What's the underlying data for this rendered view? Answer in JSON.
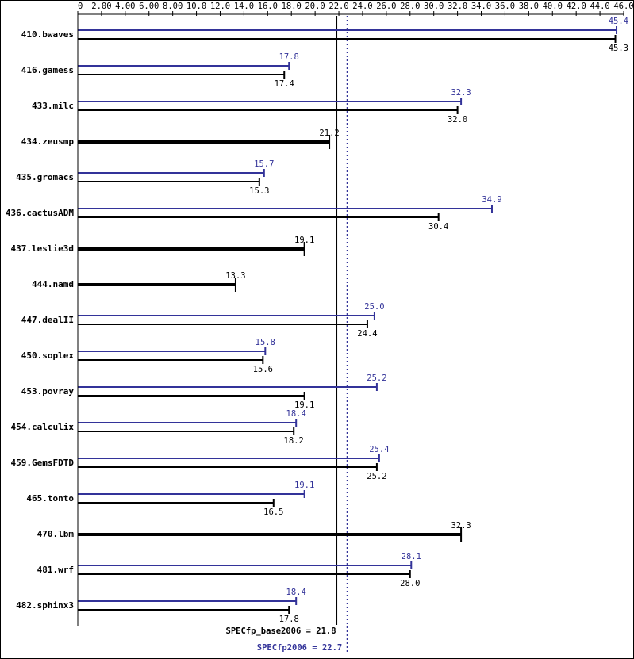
{
  "chart_data": {
    "type": "bar",
    "orientation": "horizontal",
    "categories": [
      "410.bwaves",
      "416.gamess",
      "433.milc",
      "434.zeusmp",
      "435.gromacs",
      "436.cactusADM",
      "437.leslie3d",
      "444.namd",
      "447.dealII",
      "450.soplex",
      "453.povray",
      "454.calculix",
      "459.GemsFDTD",
      "465.tonto",
      "470.lbm",
      "481.wrf",
      "482.sphinx3"
    ],
    "series": [
      {
        "color": "#333399",
        "values": [
          45.4,
          17.8,
          32.3,
          null,
          15.7,
          34.9,
          null,
          null,
          25.0,
          15.8,
          25.2,
          18.4,
          25.4,
          19.1,
          null,
          28.1,
          18.4
        ],
        "value_labels": [
          "45.4",
          "17.8",
          "32.3",
          null,
          "15.7",
          "34.9",
          null,
          null,
          "25.0",
          "15.8",
          "25.2",
          "18.4",
          "25.4",
          "19.1",
          null,
          "28.1",
          "18.4"
        ]
      },
      {
        "color": "#000000",
        "values": [
          45.3,
          17.4,
          32.0,
          21.2,
          15.3,
          30.4,
          19.1,
          13.3,
          24.4,
          15.6,
          19.1,
          18.2,
          25.2,
          16.5,
          32.3,
          28.0,
          17.8
        ],
        "value_labels": [
          "45.3",
          "17.4",
          "32.0",
          "21.2",
          "15.3",
          "30.4",
          "19.1",
          "13.3",
          "24.4",
          "15.6",
          "19.1",
          "18.2",
          "25.2",
          "16.5",
          "32.3",
          "28.0",
          "17.8"
        ]
      }
    ],
    "xlim": [
      0,
      46
    ],
    "xticks": [
      0,
      {
        "value": 2,
        "label": "2.00"
      },
      {
        "value": 4,
        "label": "4.00"
      },
      {
        "value": 6,
        "label": "6.00"
      },
      {
        "value": 8,
        "label": "8.00"
      },
      {
        "value": 10,
        "label": "10.0"
      },
      {
        "value": 12,
        "label": "12.0"
      },
      {
        "value": 14,
        "label": "14.0"
      },
      {
        "value": 16,
        "label": "16.0"
      },
      {
        "value": 18,
        "label": "18.0"
      },
      {
        "value": 20,
        "label": "20.0"
      },
      {
        "value": 22,
        "label": "22.0"
      },
      {
        "value": 24,
        "label": "24.0"
      },
      {
        "value": 26,
        "label": "26.0"
      },
      {
        "value": 28,
        "label": "28.0"
      },
      {
        "value": 30,
        "label": "30.0"
      },
      {
        "value": 32,
        "label": "32.0"
      },
      {
        "value": 34,
        "label": "34.0"
      },
      {
        "value": 36,
        "label": "36.0"
      },
      {
        "value": 38,
        "label": "38.0"
      },
      {
        "value": 40,
        "label": "40.0"
      },
      {
        "value": 42,
        "label": "42.0"
      },
      {
        "value": 44,
        "label": "44.0"
      },
      {
        "value": 46,
        "label": "46.0"
      }
    ],
    "reference_lines": [
      {
        "value": 21.8,
        "label": "SPECfp_base2006 = 21.8",
        "color": "#000000"
      },
      {
        "value": 22.7,
        "label": "SPECfp2006 = 22.7",
        "color": "#333399"
      }
    ]
  }
}
